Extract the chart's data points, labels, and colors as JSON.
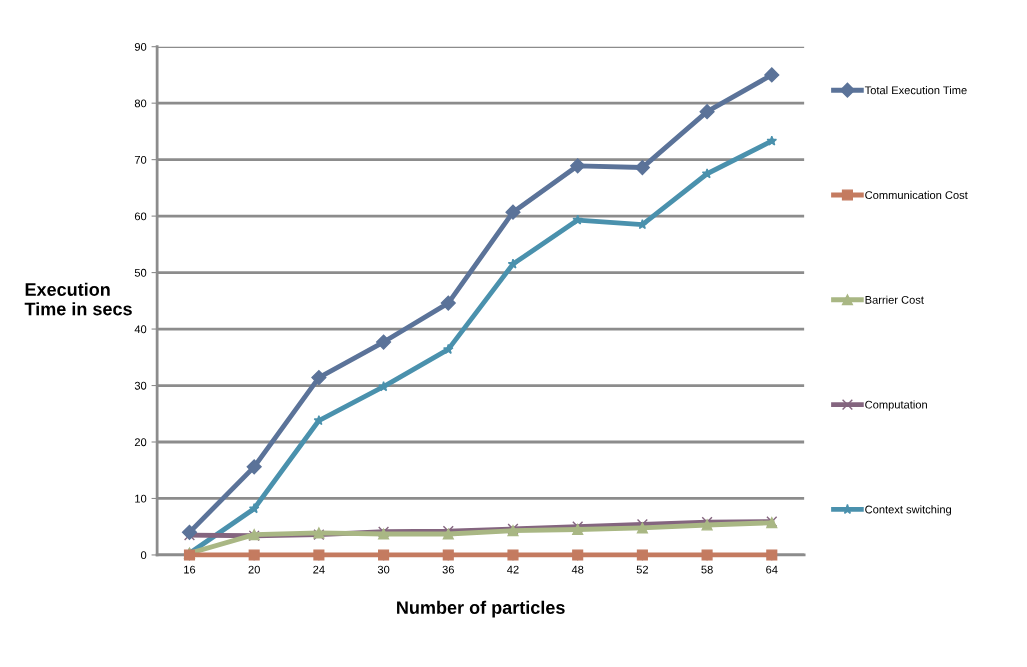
{
  "chart_data": {
    "type": "line",
    "xlabel": "Number of particles",
    "ylabel": "Execution\nTime in secs",
    "categories": [
      "16",
      "20",
      "24",
      "30",
      "36",
      "42",
      "48",
      "52",
      "58",
      "64"
    ],
    "series": [
      {
        "name": "Total Execution Time",
        "color": "#5b7399",
        "marker": "diamond",
        "values": [
          4.0,
          15.6,
          31.4,
          37.7,
          44.6,
          60.7,
          68.9,
          68.6,
          78.5,
          85.0
        ]
      },
      {
        "name": "Communication Cost",
        "color": "#c47b60",
        "marker": "square",
        "values": [
          0,
          0,
          0,
          0,
          0,
          0,
          0,
          0,
          0,
          0
        ]
      },
      {
        "name": "Barrier Cost",
        "color": "#a9b784",
        "marker": "triangle",
        "values": [
          0.3,
          3.6,
          3.9,
          3.7,
          3.7,
          4.3,
          4.5,
          4.8,
          5.3,
          5.7
        ]
      },
      {
        "name": "Computation",
        "color": "#84657f",
        "marker": "cross",
        "values": [
          3.5,
          3.4,
          3.6,
          4.1,
          4.2,
          4.6,
          5.0,
          5.4,
          5.8,
          5.9
        ]
      },
      {
        "name": "Context switching",
        "color": "#4a91ad",
        "marker": "star",
        "values": [
          0.3,
          8.2,
          23.8,
          29.8,
          36.4,
          51.5,
          59.3,
          58.5,
          67.5,
          73.3
        ]
      }
    ],
    "ylim": [
      0,
      90
    ],
    "yticks": [
      0,
      10,
      20,
      30,
      40,
      50,
      60,
      70,
      80,
      90
    ],
    "grid": "y",
    "legend": "right",
    "line_style": "solid"
  }
}
